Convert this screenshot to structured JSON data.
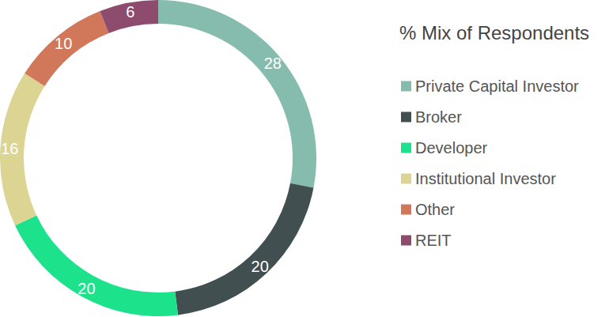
{
  "chart_data": {
    "type": "pie",
    "title": "% Mix of Respondents",
    "categories": [
      "Private Capital Investor",
      "Broker",
      "Developer",
      "Institutional Investor",
      "Other",
      "REIT"
    ],
    "values": [
      28,
      20,
      20,
      16,
      10,
      6
    ],
    "colors": [
      "#86bcad",
      "#424f50",
      "#1de28c",
      "#dbd493",
      "#d2785a",
      "#8d4b6d"
    ],
    "data_labels": true,
    "legend": "right"
  }
}
